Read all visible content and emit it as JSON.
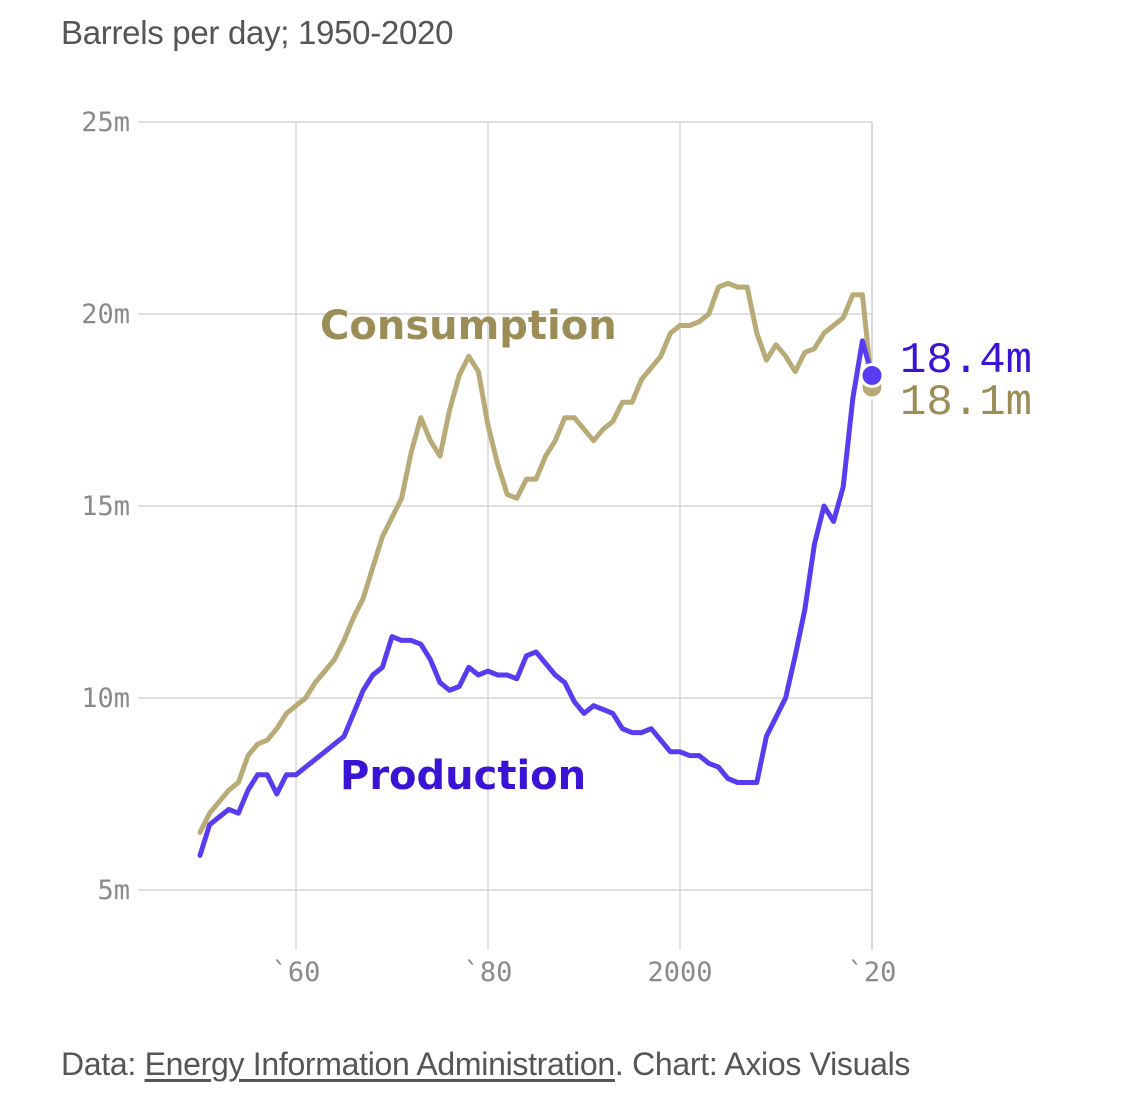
{
  "subtitle": "Barrels per day; 1950-2020",
  "footer": {
    "prefix": "Data: ",
    "source_link": "Energy Information Administration",
    "suffix": ". Chart: Axios Visuals"
  },
  "colors": {
    "consumption_line": "#b8ab78",
    "consumption_label": "#9b8d55",
    "production_line": "#5a3cf0",
    "production_label": "#3a13d4",
    "grid": "#d6d6d6",
    "tick_text": "#8a8a8a"
  },
  "chart_data": {
    "type": "line",
    "title": "",
    "subtitle": "Barrels per day; 1950-2020",
    "xlabel": "",
    "ylabel": "",
    "xlim": [
      1950,
      2020
    ],
    "ylim": [
      3.5,
      25
    ],
    "grid": true,
    "y_ticks": [
      {
        "value": 25,
        "label": "25m"
      },
      {
        "value": 20,
        "label": "20m"
      },
      {
        "value": 15,
        "label": "15m"
      },
      {
        "value": 10,
        "label": "10m"
      },
      {
        "value": 5,
        "label": "5m"
      }
    ],
    "x_ticks": [
      {
        "value": 1960,
        "label": "`60"
      },
      {
        "value": 1980,
        "label": "`80"
      },
      {
        "value": 2000,
        "label": "2000"
      },
      {
        "value": 2020,
        "label": "`20"
      }
    ],
    "x": [
      1950,
      1951,
      1952,
      1953,
      1954,
      1955,
      1956,
      1957,
      1958,
      1959,
      1960,
      1961,
      1962,
      1963,
      1964,
      1965,
      1966,
      1967,
      1968,
      1969,
      1970,
      1971,
      1972,
      1973,
      1974,
      1975,
      1976,
      1977,
      1978,
      1979,
      1980,
      1981,
      1982,
      1983,
      1984,
      1985,
      1986,
      1987,
      1988,
      1989,
      1990,
      1991,
      1992,
      1993,
      1994,
      1995,
      1996,
      1997,
      1998,
      1999,
      2000,
      2001,
      2002,
      2003,
      2004,
      2005,
      2006,
      2007,
      2008,
      2009,
      2010,
      2011,
      2012,
      2013,
      2014,
      2015,
      2016,
      2017,
      2018,
      2019,
      2020
    ],
    "series": [
      {
        "name": "Consumption",
        "label": "Consumption",
        "end_label": "18.1m",
        "values": [
          6.5,
          7.0,
          7.3,
          7.6,
          7.8,
          8.5,
          8.8,
          8.9,
          9.2,
          9.6,
          9.8,
          10.0,
          10.4,
          10.7,
          11.0,
          11.5,
          12.1,
          12.6,
          13.4,
          14.2,
          14.7,
          15.2,
          16.4,
          17.3,
          16.7,
          16.3,
          17.5,
          18.4,
          18.9,
          18.5,
          17.1,
          16.1,
          15.3,
          15.2,
          15.7,
          15.7,
          16.3,
          16.7,
          17.3,
          17.3,
          17.0,
          16.7,
          17.0,
          17.2,
          17.7,
          17.7,
          18.3,
          18.6,
          18.9,
          19.5,
          19.7,
          19.7,
          19.8,
          20.0,
          20.7,
          20.8,
          20.7,
          20.7,
          19.5,
          18.8,
          19.2,
          18.9,
          18.5,
          19.0,
          19.1,
          19.5,
          19.7,
          19.9,
          20.5,
          20.5,
          18.1
        ]
      },
      {
        "name": "Production",
        "label": "Production",
        "end_label": "18.4m",
        "values": [
          5.9,
          6.7,
          6.9,
          7.1,
          7.0,
          7.6,
          8.0,
          8.0,
          7.5,
          8.0,
          8.0,
          8.2,
          8.4,
          8.6,
          8.8,
          9.0,
          9.6,
          10.2,
          10.6,
          10.8,
          11.6,
          11.5,
          11.5,
          11.4,
          11.0,
          10.4,
          10.2,
          10.3,
          10.8,
          10.6,
          10.7,
          10.6,
          10.6,
          10.5,
          11.1,
          11.2,
          10.9,
          10.6,
          10.4,
          9.9,
          9.6,
          9.8,
          9.7,
          9.6,
          9.2,
          9.1,
          9.1,
          9.2,
          8.9,
          8.6,
          8.6,
          8.5,
          8.5,
          8.3,
          8.2,
          7.9,
          7.8,
          7.8,
          7.8,
          9.0,
          9.5,
          10.0,
          11.1,
          12.3,
          14.0,
          15.0,
          14.6,
          15.5,
          17.8,
          19.3,
          18.4
        ]
      }
    ]
  }
}
